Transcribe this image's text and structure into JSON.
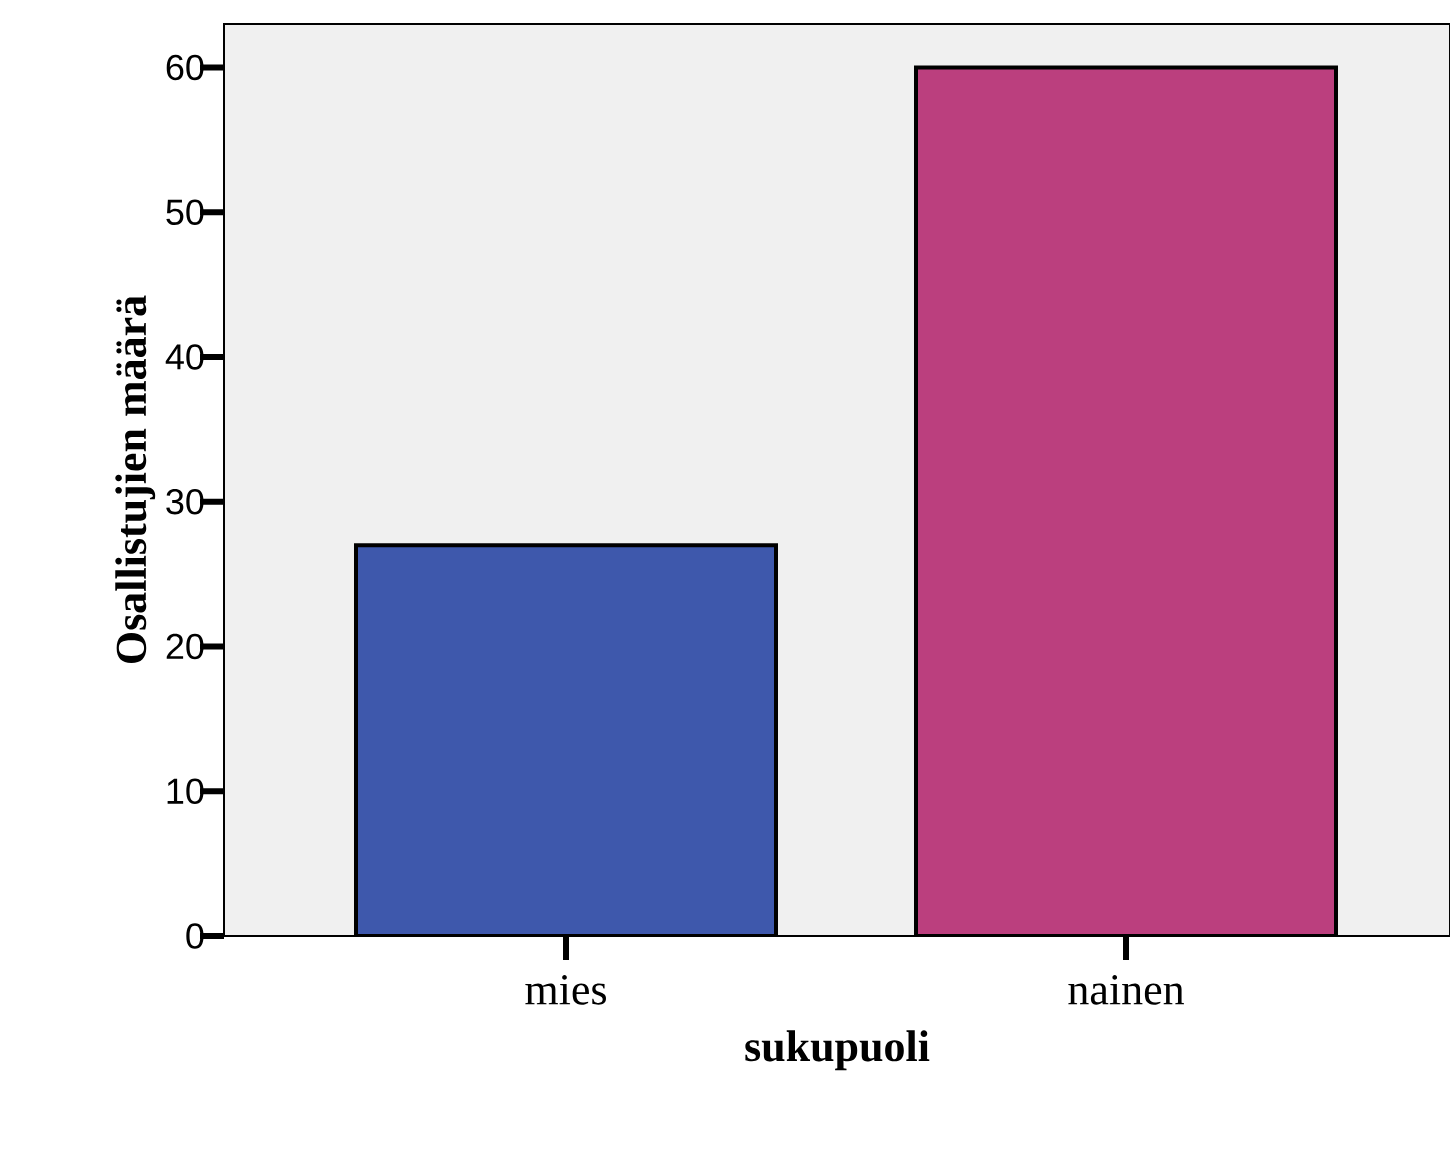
{
  "chart_data": {
    "type": "bar",
    "xlabel": "sukupuoli",
    "ylabel": "Osallistujien määrä",
    "categories": [
      "mies",
      "nainen"
    ],
    "values": [
      27,
      60
    ],
    "colors": [
      "#3e58ac",
      "#bb3f7e"
    ],
    "ylim": [
      0,
      63
    ],
    "yticks": [
      0,
      10,
      20,
      30,
      40,
      50,
      60
    ],
    "grid": false
  }
}
